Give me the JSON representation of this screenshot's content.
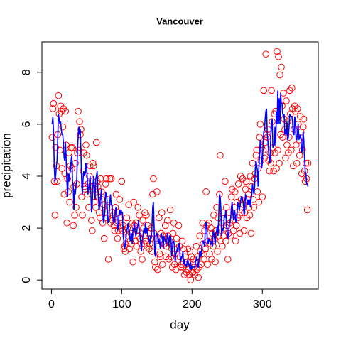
{
  "chart_data": {
    "type": "scatter",
    "title": "Vancouver",
    "xlabel": "day",
    "ylabel": "precipitation",
    "xlim": [
      -13.56,
      379.56
    ],
    "ylim": [
      -0.35,
      9.17
    ],
    "xticks": [
      0,
      100,
      200,
      300
    ],
    "yticks": [
      0,
      2,
      4,
      6,
      8
    ],
    "x": [
      1,
      2,
      3,
      4,
      5,
      6,
      7,
      8,
      9,
      10,
      11,
      12,
      13,
      14,
      15,
      16,
      17,
      18,
      19,
      20,
      21,
      22,
      23,
      24,
      25,
      26,
      27,
      28,
      29,
      30,
      31,
      32,
      33,
      34,
      35,
      36,
      37,
      38,
      39,
      40,
      41,
      42,
      43,
      44,
      45,
      46,
      47,
      48,
      49,
      50,
      51,
      52,
      53,
      54,
      55,
      56,
      57,
      58,
      59,
      60,
      61,
      62,
      63,
      64,
      65,
      66,
      67,
      68,
      69,
      70,
      71,
      72,
      73,
      74,
      75,
      76,
      77,
      78,
      79,
      80,
      81,
      82,
      83,
      84,
      85,
      86,
      87,
      88,
      89,
      90,
      91,
      92,
      93,
      94,
      95,
      96,
      97,
      98,
      99,
      100,
      101,
      102,
      103,
      104,
      105,
      106,
      107,
      108,
      109,
      110,
      111,
      112,
      113,
      114,
      115,
      116,
      117,
      118,
      119,
      120,
      121,
      122,
      123,
      124,
      125,
      126,
      127,
      128,
      129,
      130,
      131,
      132,
      133,
      134,
      135,
      136,
      137,
      138,
      139,
      140,
      141,
      142,
      143,
      144,
      145,
      146,
      147,
      148,
      149,
      150,
      151,
      152,
      153,
      154,
      155,
      156,
      157,
      158,
      159,
      160,
      161,
      162,
      163,
      164,
      165,
      166,
      167,
      168,
      169,
      170,
      171,
      172,
      173,
      174,
      175,
      176,
      177,
      178,
      179,
      180,
      181,
      182,
      183,
      184,
      185,
      186,
      187,
      188,
      189,
      190,
      191,
      192,
      193,
      194,
      195,
      196,
      197,
      198,
      199,
      200,
      201,
      202,
      203,
      204,
      205,
      206,
      207,
      208,
      209,
      210,
      211,
      212,
      213,
      214,
      215,
      216,
      217,
      218,
      219,
      220,
      221,
      222,
      223,
      224,
      225,
      226,
      227,
      228,
      229,
      230,
      231,
      232,
      233,
      234,
      235,
      236,
      237,
      238,
      239,
      240,
      241,
      242,
      243,
      244,
      245,
      246,
      247,
      248,
      249,
      250,
      251,
      252,
      253,
      254,
      255,
      256,
      257,
      258,
      259,
      260,
      261,
      262,
      263,
      264,
      265,
      266,
      267,
      268,
      269,
      270,
      271,
      272,
      273,
      274,
      275,
      276,
      277,
      278,
      279,
      280,
      281,
      282,
      283,
      284,
      285,
      286,
      287,
      288,
      289,
      290,
      291,
      292,
      293,
      294,
      295,
      296,
      297,
      298,
      299,
      300,
      301,
      302,
      303,
      304,
      305,
      306,
      307,
      308,
      309,
      310,
      311,
      312,
      313,
      314,
      315,
      316,
      317,
      318,
      319,
      320,
      321,
      322,
      323,
      324,
      325,
      326,
      327,
      328,
      329,
      330,
      331,
      332,
      333,
      334,
      335,
      336,
      337,
      338,
      339,
      340,
      341,
      342,
      343,
      344,
      345,
      346,
      347,
      348,
      349,
      350,
      351,
      352,
      353,
      354,
      355,
      356,
      357,
      358,
      359,
      360,
      361,
      362,
      363,
      364,
      365
    ],
    "series": [
      {
        "type": "scatter",
        "color": "#ff0000",
        "values": [
          5.5,
          6.6,
          6.8,
          3.8,
          2.5,
          5.1,
          4.4,
          3.8,
          5.6,
          7.1,
          6.4,
          5.0,
          6.7,
          6.5,
          4.3,
          5.9,
          6.6,
          3.3,
          4.1,
          6.5,
          5.2,
          2.2,
          3.9,
          3.4,
          4.9,
          3.0,
          4.4,
          5.1,
          4.3,
          5.1,
          2.1,
          3.6,
          2.5,
          4.5,
          2.8,
          3.7,
          4.9,
          6.5,
          5.0,
          6.1,
          5.6,
          5.8,
          3.2,
          2.5,
          4.2,
          4.9,
          3.6,
          3.5,
          5.2,
          4.8,
          3.3,
          3.7,
          2.8,
          4.0,
          4.4,
          3.6,
          2.3,
          1.9,
          4.5,
          4.4,
          3.0,
          3.5,
          2.8,
          5.3,
          3.8,
          3.6,
          3.2,
          2.6,
          2.4,
          3.9,
          3.4,
          3.1,
          2.2,
          2.9,
          1.6,
          2.6,
          3.7,
          3.9,
          2.4,
          3.1,
          0.8,
          2.8,
          3.9,
          2.2,
          3.9,
          2.6,
          2.3,
          2.5,
          2.1,
          1.9,
          2.8,
          3.3,
          2.2,
          1.6,
          1.9,
          2.6,
          3.1,
          2.4,
          2.0,
          3.8,
          1.9,
          2.1,
          1.2,
          1.3,
          1.1,
          1.4,
          2.4,
          2.0,
          1.7,
          2.9,
          1.2,
          1.5,
          1.8,
          1.4,
          2.2,
          0.7,
          3.0,
          2.1,
          1.5,
          2.2,
          1.3,
          1.9,
          2.8,
          1.7,
          2.5,
          1.6,
          1.1,
          1.4,
          0.8,
          2.3,
          2.0,
          1.4,
          2.6,
          1.5,
          2.5,
          1.3,
          2.1,
          1.8,
          1.2,
          1.4,
          1.6,
          2.0,
          1.1,
          3.3,
          3.9,
          1.8,
          0.7,
          0.5,
          1.6,
          3.4,
          0.4,
          1.3,
          2.4,
          1.0,
          0.9,
          1.8,
          2.6,
          0.6,
          1.7,
          1.4,
          1.4,
          2.1,
          0.9,
          1.3,
          2.3,
          1.7,
          0.8,
          1.5,
          2.7,
          0.9,
          1.2,
          0.5,
          1.8,
          2.2,
          0.6,
          1.0,
          0.4,
          1.6,
          1.2,
          0.7,
          2.1,
          1.3,
          0.9,
          0.5,
          0.6,
          1.5,
          0.5,
          1.2,
          0.2,
          0.9,
          0.6,
          0.3,
          0.7,
          1.2,
          0.4,
          0.2,
          1.1,
          0.0,
          0.9,
          0.3,
          0.3,
          0.8,
          0.5,
          0.2,
          0.7,
          1.3,
          0.4,
          0.9,
          0.1,
          0.5,
          1.7,
          1.1,
          0.6,
          1.0,
          2.2,
          1.4,
          0.8,
          1.9,
          1.2,
          3.4,
          2.1,
          0.6,
          1.5,
          2.2,
          1.0,
          1.4,
          2.0,
          0.8,
          1.8,
          1.3,
          2.5,
          1.6,
          0.7,
          1.9,
          2.8,
          1.1,
          2.4,
          1.7,
          3.3,
          4.8,
          1.5,
          2.2,
          1.3,
          2.6,
          1.7,
          2.0,
          3.8,
          1.5,
          2.8,
          2.1,
          0.8,
          1.8,
          2.6,
          2.2,
          1.7,
          3.2,
          3.5,
          2.3,
          1.9,
          2.8,
          3.4,
          1.5,
          2.1,
          3.0,
          2.4,
          3.7,
          2.5,
          1.8,
          4.0,
          3.1,
          2.6,
          3.9,
          2.9,
          1.9,
          2.6,
          3.5,
          3.8,
          2.4,
          3.1,
          3.3,
          2.8,
          2.5,
          4.0,
          1.8,
          3.6,
          4.5,
          3.1,
          2.8,
          3.9,
          4.1,
          4.8,
          5.0,
          3.4,
          4.3,
          3.0,
          5.5,
          6.0,
          4.6,
          5.1,
          3.2,
          5.0,
          7.3,
          4.7,
          5.3,
          8.7,
          5.6,
          5.5,
          5.8,
          4.6,
          4.2,
          4.9,
          4.5,
          7.3,
          6.1,
          5.1,
          4.2,
          6.4,
          4.9,
          6.5,
          4.3,
          8.8,
          5.0,
          8.6,
          4.5,
          7.9,
          5.6,
          8.2,
          6.7,
          5.5,
          7.2,
          6.2,
          5.8,
          4.7,
          6.9,
          5.2,
          6.1,
          4.9,
          5.5,
          7.3,
          6.4,
          5.0,
          7.4,
          6.6,
          4.4,
          5.8,
          6.7,
          6.5,
          5.2,
          4.5,
          6.6,
          6.0,
          5.4,
          4.8,
          6.3,
          5.7,
          4.1,
          5.0,
          5.9,
          6.2,
          4.2,
          3.8,
          4.5,
          3.9,
          2.7,
          4.5
        ]
      },
      {
        "type": "line",
        "color": "#0000ff",
        "values": [
          6.0,
          6.3,
          5.7,
          4.4,
          3.8,
          4.0,
          4.4,
          4.6,
          5.5,
          6.4,
          6.2,
          6.0,
          6.1,
          5.8,
          5.6,
          5.6,
          5.3,
          4.7,
          4.6,
          5.3,
          4.6,
          3.8,
          3.2,
          4.1,
          3.8,
          4.1,
          4.2,
          4.6,
          4.8,
          3.8,
          3.6,
          2.7,
          3.5,
          3.3,
          3.7,
          3.8,
          5.0,
          5.5,
          5.9,
          5.6,
          5.8,
          4.9,
          3.8,
          3.3,
          3.9,
          4.2,
          4.0,
          4.1,
          4.5,
          4.4,
          3.9,
          3.3,
          3.5,
          3.7,
          4.0,
          3.4,
          2.6,
          2.9,
          3.6,
          4.0,
          3.6,
          3.1,
          3.9,
          4.0,
          4.2,
          3.5,
          3.1,
          2.7,
          3.0,
          3.2,
          3.5,
          2.9,
          2.7,
          2.2,
          2.4,
          2.6,
          3.4,
          3.3,
          3.1,
          2.3,
          2.2,
          2.5,
          3.0,
          3.3,
          2.9,
          2.9,
          2.5,
          2.3,
          2.2,
          2.3,
          2.7,
          2.8,
          2.4,
          1.9,
          2.0,
          2.5,
          2.7,
          2.5,
          2.7,
          2.6,
          2.6,
          1.7,
          1.5,
          1.2,
          1.3,
          1.6,
          1.9,
          2.0,
          2.2,
          1.9,
          1.9,
          1.5,
          1.6,
          1.8,
          1.4,
          2.0,
          1.9,
          2.2,
          1.9,
          1.7,
          1.8,
          2.0,
          2.1,
          2.3,
          1.9,
          1.7,
          1.4,
          1.1,
          1.5,
          1.7,
          1.9,
          2.0,
          1.8,
          2.2,
          1.8,
          2.0,
          1.7,
          1.7,
          1.5,
          1.4,
          1.7,
          1.6,
          2.1,
          2.8,
          3.0,
          2.1,
          1.0,
          0.9,
          1.8,
          1.8,
          1.7,
          1.4,
          1.6,
          1.4,
          1.2,
          1.8,
          1.7,
          1.6,
          1.2,
          1.7,
          1.6,
          1.5,
          1.4,
          1.5,
          1.8,
          1.6,
          1.3,
          1.7,
          1.7,
          1.6,
          0.9,
          1.2,
          1.5,
          1.5,
          1.3,
          0.7,
          1.0,
          1.1,
          1.2,
          1.1,
          1.4,
          1.4,
          0.9,
          0.7,
          0.9,
          0.9,
          1.1,
          0.6,
          0.8,
          0.6,
          0.6,
          0.5,
          0.7,
          0.8,
          0.6,
          0.6,
          0.4,
          0.7,
          0.4,
          0.5,
          0.5,
          0.5,
          0.5,
          0.5,
          0.7,
          0.8,
          0.9,
          0.5,
          0.5,
          0.8,
          1.1,
          1.1,
          0.9,
          1.3,
          1.5,
          1.5,
          1.4,
          1.3,
          2.2,
          2.2,
          2.0,
          1.4,
          1.4,
          1.6,
          1.5,
          1.5,
          1.4,
          1.5,
          1.3,
          1.9,
          1.8,
          1.6,
          1.4,
          1.8,
          1.9,
          2.1,
          1.7,
          2.5,
          3.3,
          3.2,
          2.8,
          1.7,
          2.0,
          1.9,
          2.1,
          2.5,
          2.4,
          2.7,
          2.1,
          1.9,
          1.6,
          1.7,
          2.2,
          2.2,
          2.4,
          2.8,
          3.0,
          2.6,
          2.3,
          2.7,
          2.6,
          2.3,
          2.2,
          2.5,
          3.0,
          2.9,
          2.7,
          2.8,
          3.0,
          3.2,
          3.2,
          3.1,
          2.9,
          2.5,
          2.7,
          3.3,
          3.2,
          3.1,
          2.9,
          3.1,
          2.9,
          3.1,
          2.8,
          3.1,
          3.3,
          3.7,
          3.5,
          3.3,
          3.6,
          4.3,
          4.6,
          4.4,
          4.2,
          3.6,
          4.3,
          4.8,
          5.4,
          5.2,
          4.3,
          4.5,
          5.2,
          5.7,
          5.8,
          6.2,
          6.5,
          6.6,
          5.6,
          5.3,
          4.9,
          4.6,
          4.5,
          5.6,
          6.0,
          6.2,
          5.1,
          5.2,
          5.2,
          5.9,
          5.2,
          6.5,
          6.0,
          7.3,
          6.0,
          7.0,
          6.0,
          7.2,
          6.8,
          6.8,
          6.4,
          6.3,
          6.4,
          5.6,
          5.8,
          5.6,
          6.1,
          5.4,
          5.5,
          5.9,
          6.4,
          6.3,
          6.3,
          6.3,
          6.1,
          5.6,
          5.6,
          6.3,
          6.1,
          5.4,
          5.4,
          5.7,
          6.0,
          5.4,
          5.5,
          5.6,
          5.4,
          4.9,
          5.0,
          5.7,
          5.4,
          4.7,
          4.2,
          4.1,
          3.7,
          3.7,
          3.6
        ]
      }
    ]
  }
}
